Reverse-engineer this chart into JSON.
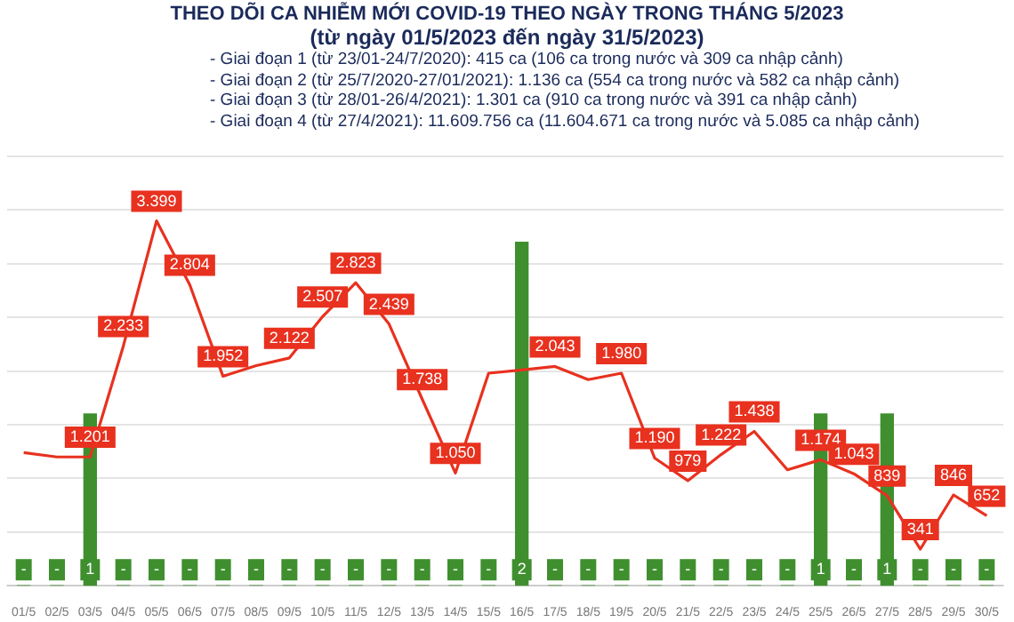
{
  "chart_data": {
    "type": "bar",
    "title": "THEO DÕI CA NHIỄM MỚI COVID-19 THEO NGÀY TRONG THÁNG 5/2023",
    "subtitle": "(từ ngày 01/5/2023 đến ngày 31/5/2023)",
    "annotations": [
      "- Giai đoạn 1 (từ 23/01-24/7/2020): 415 ca (106 ca trong nước và 309 ca nhập cảnh)",
      "- Giai đoạn 2 (từ 25/7/2020-27/01/2021): 1.136 ca (554 ca trong nước và 582 ca nhập cảnh)",
      "- Giai đoạn 3 (từ 28/01-26/4/2021): 1.301 ca (910 ca trong nước và 391 ca nhập cảnh)",
      "- Giai đoạn 4 (từ 27/4/2021): 11.609.756 ca (11.604.671 ca trong nước và 5.085 ca nhập cảnh)"
    ],
    "categories": [
      "01/5",
      "02/5",
      "03/5",
      "04/5",
      "05/5",
      "06/5",
      "07/5",
      "08/5",
      "09/5",
      "10/5",
      "11/5",
      "12/5",
      "13/5",
      "14/5",
      "15/5",
      "16/5",
      "17/5",
      "18/5",
      "19/5",
      "20/5",
      "21/5",
      "22/5",
      "23/5",
      "24/5",
      "25/5",
      "26/5",
      "27/5",
      "28/5",
      "29/5",
      "30/5"
    ],
    "series": [
      {
        "axis": "y2",
        "color": "#3f8f2f",
        "values": [
          0,
          0,
          1,
          0,
          0,
          0,
          0,
          0,
          0,
          0,
          0,
          0,
          0,
          0,
          0,
          2,
          0,
          0,
          0,
          0,
          0,
          0,
          0,
          0,
          1,
          0,
          1,
          0,
          0,
          0
        ],
        "value_labels": [
          "-",
          "-",
          "1",
          "-",
          "-",
          "-",
          "-",
          "-",
          "-",
          "-",
          "-",
          "-",
          "-",
          "-",
          "-",
          "2",
          "-",
          "-",
          "-",
          "-",
          "-",
          "-",
          "-",
          "-",
          "1",
          "-",
          "1",
          "-",
          "-",
          "-"
        ]
      },
      {
        "type": "line",
        "color": "#e8311f",
        "values": [
          1240,
          1200,
          1201,
          2233,
          3399,
          2804,
          1952,
          2050,
          2122,
          2507,
          2823,
          2439,
          1738,
          1050,
          1980,
          2010,
          2043,
          1920,
          1980,
          1190,
          979,
          1222,
          1438,
          1080,
          1174,
          1043,
          839,
          341,
          846,
          652
        ],
        "value_labels": [
          null,
          null,
          "1.201",
          "2.233",
          "3.399",
          "2.804",
          "1.952",
          null,
          "2.122",
          "2.507",
          "2.823",
          "2.439",
          "1.738",
          "1.050",
          null,
          null,
          "2.043",
          null,
          "1.980",
          "1.190",
          "979",
          "1.222",
          "1.438",
          null,
          "1.174",
          "1.043",
          "839",
          "341",
          "846",
          "652"
        ]
      }
    ],
    "yticks": [
      {
        "value": 0,
        "label": null
      },
      {
        "value": 500,
        "label": null
      },
      {
        "value": 1000,
        "label": null
      },
      {
        "value": 1500,
        "label": null
      },
      {
        "value": 2000,
        "label": null
      },
      {
        "value": 2500,
        "label": null
      },
      {
        "value": 3000,
        "label": null
      },
      {
        "value": 3500,
        "label": null
      },
      {
        "value": 4000,
        "label": null
      }
    ],
    "grid": "y",
    "tick_labels": "x",
    "marker": "none",
    "line_style": "solid"
  }
}
